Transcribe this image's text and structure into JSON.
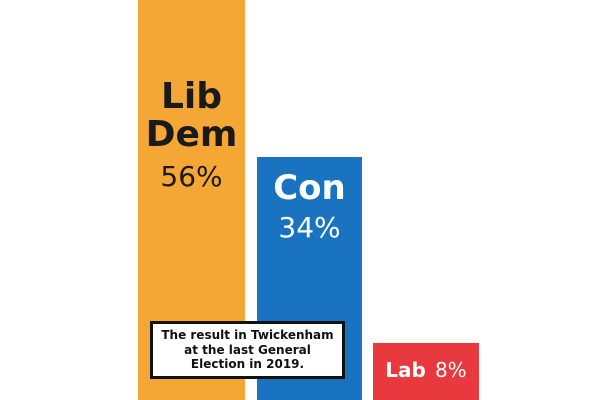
{
  "chart_data": {
    "type": "bar",
    "categories": [
      "Lib Dem",
      "Con",
      "Lab"
    ],
    "values": [
      56,
      34,
      8
    ],
    "value_labels": [
      "56%",
      "34%",
      "8%"
    ],
    "colors": [
      "#f4a734",
      "#1a73c0",
      "#e8393f"
    ],
    "ylim": [
      0,
      56
    ],
    "grid": false,
    "annotation": "The result in Twickenham at the last General Election in 2019."
  }
}
